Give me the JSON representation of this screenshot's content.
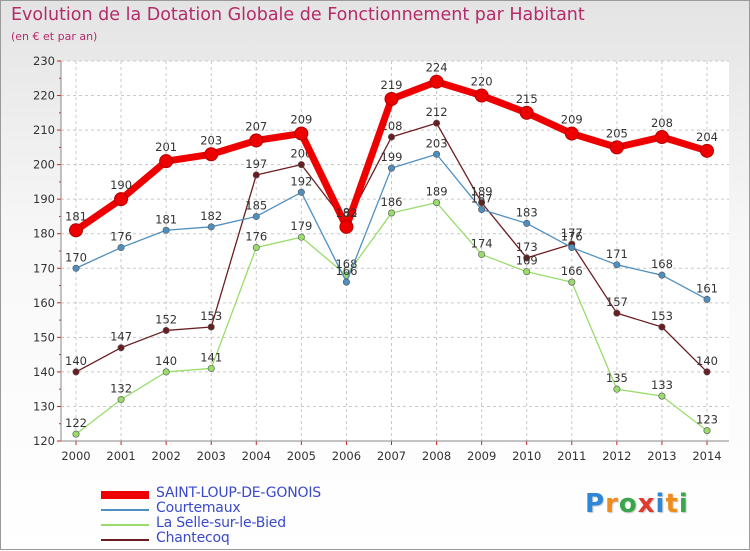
{
  "title": "Evolution de la Dotation Globale de Fonctionnement par Habitant",
  "subtitle": "(en € et par an)",
  "brand": {
    "letters": [
      {
        "char": "P",
        "color": "#2e86d6"
      },
      {
        "char": "r",
        "color": "#f08c1c"
      },
      {
        "char": "o",
        "color": "#3aa64a"
      },
      {
        "char": "x",
        "color": "#e03a2f"
      },
      {
        "char": "i",
        "color": "#2e86d6"
      },
      {
        "char": "t",
        "color": "#f08c1c"
      },
      {
        "char": "i",
        "color": "#3aa64a"
      }
    ]
  },
  "chart_data": {
    "type": "line",
    "x": [
      "2000",
      "2001",
      "2002",
      "2003",
      "2004",
      "2005",
      "2006",
      "2007",
      "2008",
      "2009",
      "2010",
      "2011",
      "2012",
      "2013",
      "2014"
    ],
    "ylim": [
      120,
      230
    ],
    "yticks": [
      120,
      130,
      140,
      150,
      160,
      170,
      180,
      190,
      200,
      210,
      220,
      230
    ],
    "grid": true,
    "legend_position": "bottom-left",
    "series": [
      {
        "name": "SAINT-LOUP-DE-GONOIS",
        "color": "#ee0000",
        "values": [
          181,
          190,
          201,
          203,
          207,
          209,
          182,
          219,
          224,
          220,
          215,
          209,
          205,
          208,
          204
        ]
      },
      {
        "name": "Courtemaux",
        "color": "#4f8fc0",
        "values": [
          170,
          176,
          181,
          182,
          185,
          192,
          166,
          199,
          203,
          187,
          183,
          176,
          171,
          168,
          161
        ]
      },
      {
        "name": "La Selle-sur-le-Bied",
        "color": "#98dc6b",
        "values": [
          122,
          132,
          140,
          141,
          176,
          179,
          168,
          186,
          189,
          174,
          169,
          166,
          135,
          133,
          123
        ]
      },
      {
        "name": "Chantecoq",
        "color": "#6b1e22",
        "values": [
          140,
          147,
          152,
          153,
          197,
          200,
          183,
          208,
          212,
          189,
          173,
          177,
          157,
          153,
          140
        ]
      }
    ]
  }
}
